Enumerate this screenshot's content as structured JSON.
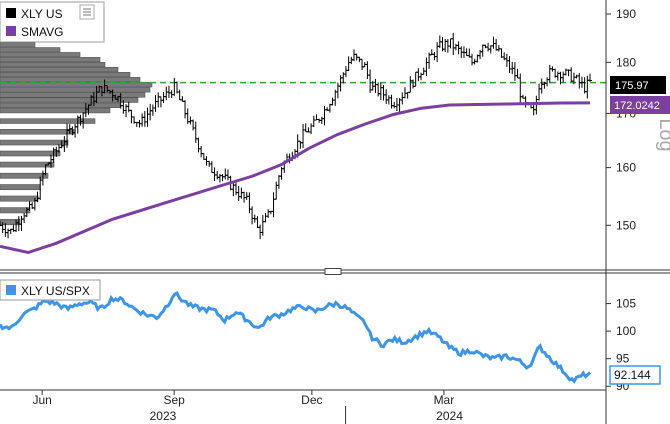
{
  "chart_data": [
    {
      "type": "ohlc",
      "scale": "log",
      "ylim": [
        143,
        193
      ],
      "yticks": [
        150,
        160,
        170,
        180,
        190
      ],
      "ylabel": "Log",
      "grid": false,
      "legend": "top-left",
      "colors": {
        "price": "#000000",
        "sma": "#7b3fa2",
        "volume_profile": "#7a7a7a",
        "reference": "#2ea82e"
      },
      "series": [
        {
          "name": "XLY US",
          "last_value": "175.97",
          "color": "#000000"
        },
        {
          "name": "SMAVG",
          "last_value": "172.0242",
          "color": "#7b3fa2"
        }
      ],
      "reference_line": {
        "value": 175.97,
        "style": "dashed",
        "color": "#2ea82e"
      },
      "price_path": [
        [
          0,
          150
        ],
        [
          2,
          149
        ],
        [
          4,
          152
        ],
        [
          6,
          153
        ],
        [
          8,
          160
        ],
        [
          10,
          163
        ],
        [
          12,
          166
        ],
        [
          14,
          169
        ],
        [
          16,
          172
        ],
        [
          18,
          175
        ],
        [
          20,
          174
        ],
        [
          21,
          173
        ],
        [
          23,
          170
        ],
        [
          25,
          168
        ],
        [
          27,
          171
        ],
        [
          30,
          174
        ],
        [
          31,
          175
        ],
        [
          33,
          170
        ],
        [
          35,
          165
        ],
        [
          37,
          160
        ],
        [
          39,
          159
        ],
        [
          41,
          157
        ],
        [
          42,
          156
        ],
        [
          44,
          154
        ],
        [
          46,
          149
        ],
        [
          48,
          152
        ],
        [
          50,
          160
        ],
        [
          52,
          163
        ],
        [
          54,
          166
        ],
        [
          56,
          168
        ],
        [
          58,
          171
        ],
        [
          60,
          175
        ],
        [
          62,
          180
        ],
        [
          63,
          181
        ],
        [
          65,
          179
        ],
        [
          66,
          175
        ],
        [
          68,
          174
        ],
        [
          70,
          172
        ],
        [
          72,
          174
        ],
        [
          74,
          177
        ],
        [
          76,
          180
        ],
        [
          78,
          183
        ],
        [
          80,
          184
        ],
        [
          82,
          182
        ],
        [
          84,
          180
        ],
        [
          86,
          184
        ],
        [
          88,
          183
        ],
        [
          90,
          180
        ],
        [
          92,
          177
        ],
        [
          93,
          172
        ],
        [
          95,
          170
        ],
        [
          96,
          176
        ],
        [
          98,
          178
        ],
        [
          100,
          178
        ],
        [
          102,
          177
        ],
        [
          104,
          175
        ],
        [
          105,
          176
        ]
      ],
      "sma_path": [
        [
          0,
          146.5
        ],
        [
          5,
          145.5
        ],
        [
          10,
          147
        ],
        [
          20,
          151
        ],
        [
          30,
          154
        ],
        [
          40,
          157
        ],
        [
          45,
          158.5
        ],
        [
          50,
          160.5
        ],
        [
          55,
          163.5
        ],
        [
          60,
          166
        ],
        [
          65,
          168
        ],
        [
          70,
          169.8
        ],
        [
          75,
          171
        ],
        [
          80,
          171.6
        ],
        [
          90,
          171.8
        ],
        [
          100,
          172
        ],
        [
          105,
          172.02
        ]
      ],
      "volume_profile": [
        [
          150,
          20
        ],
        [
          152,
          30
        ],
        [
          154,
          38
        ],
        [
          156,
          40
        ],
        [
          158,
          48
        ],
        [
          160,
          54
        ],
        [
          162,
          60
        ],
        [
          164,
          68
        ],
        [
          166,
          74
        ],
        [
          168,
          95
        ],
        [
          170,
          110
        ],
        [
          171,
          120
        ],
        [
          172,
          138
        ],
        [
          173,
          145
        ],
        [
          174,
          150
        ],
        [
          175,
          152
        ],
        [
          176,
          140
        ],
        [
          177,
          130
        ],
        [
          178,
          118
        ],
        [
          179,
          105
        ],
        [
          180,
          100
        ],
        [
          181,
          80
        ],
        [
          182,
          60
        ],
        [
          183,
          35
        ]
      ]
    },
    {
      "type": "line",
      "ylim": [
        89.5,
        110
      ],
      "yticks": [
        90,
        95,
        100,
        105
      ],
      "grid": false,
      "legend": "top-left",
      "series": [
        {
          "name": "XLY US/SPX",
          "last_value": "92.144",
          "color": "#3c95e6"
        }
      ],
      "values": [
        [
          0,
          101
        ],
        [
          2,
          100.5
        ],
        [
          4,
          103
        ],
        [
          6,
          104
        ],
        [
          8,
          105.5
        ],
        [
          10,
          105
        ],
        [
          12,
          104
        ],
        [
          14,
          105
        ],
        [
          16,
          105.2
        ],
        [
          18,
          104
        ],
        [
          20,
          106
        ],
        [
          22,
          105.5
        ],
        [
          24,
          104
        ],
        [
          26,
          103
        ],
        [
          28,
          102.5
        ],
        [
          30,
          105
        ],
        [
          31,
          107
        ],
        [
          32,
          106
        ],
        [
          34,
          104.5
        ],
        [
          36,
          104
        ],
        [
          38,
          103.8
        ],
        [
          40,
          102
        ],
        [
          42,
          103.5
        ],
        [
          44,
          102
        ],
        [
          46,
          100.5
        ],
        [
          48,
          102.5
        ],
        [
          50,
          103
        ],
        [
          52,
          104
        ],
        [
          54,
          104.5
        ],
        [
          56,
          103.5
        ],
        [
          58,
          104.5
        ],
        [
          60,
          105
        ],
        [
          62,
          104
        ],
        [
          63,
          103
        ],
        [
          65,
          101.5
        ],
        [
          66,
          99
        ],
        [
          68,
          97.5
        ],
        [
          70,
          98.5
        ],
        [
          72,
          98
        ],
        [
          74,
          99
        ],
        [
          76,
          100
        ],
        [
          78,
          99
        ],
        [
          80,
          97
        ],
        [
          82,
          96
        ],
        [
          84,
          96.5
        ],
        [
          86,
          95.5
        ],
        [
          88,
          95
        ],
        [
          90,
          95.5
        ],
        [
          92,
          94.8
        ],
        [
          94,
          93.5
        ],
        [
          95,
          95
        ],
        [
          96,
          97.2
        ],
        [
          98,
          95
        ],
        [
          100,
          93
        ],
        [
          102,
          91
        ],
        [
          104,
          92.1
        ],
        [
          105,
          92.144
        ]
      ]
    }
  ],
  "x_axis": {
    "month_labels": [
      "Jun",
      "Sep",
      "Dec",
      "Mar"
    ],
    "year_labels": [
      "2023",
      "2024"
    ]
  },
  "legend": {
    "top": [
      {
        "label": "XLY US",
        "color": "#000000"
      },
      {
        "label": "SMAVG",
        "color": "#7b3fa2"
      }
    ],
    "bottom": [
      {
        "label": "XLY US/SPX",
        "color": "#3c95e6"
      }
    ]
  },
  "tags": {
    "price": "175.97",
    "sma": "172.0242",
    "ratio": "92.144"
  }
}
